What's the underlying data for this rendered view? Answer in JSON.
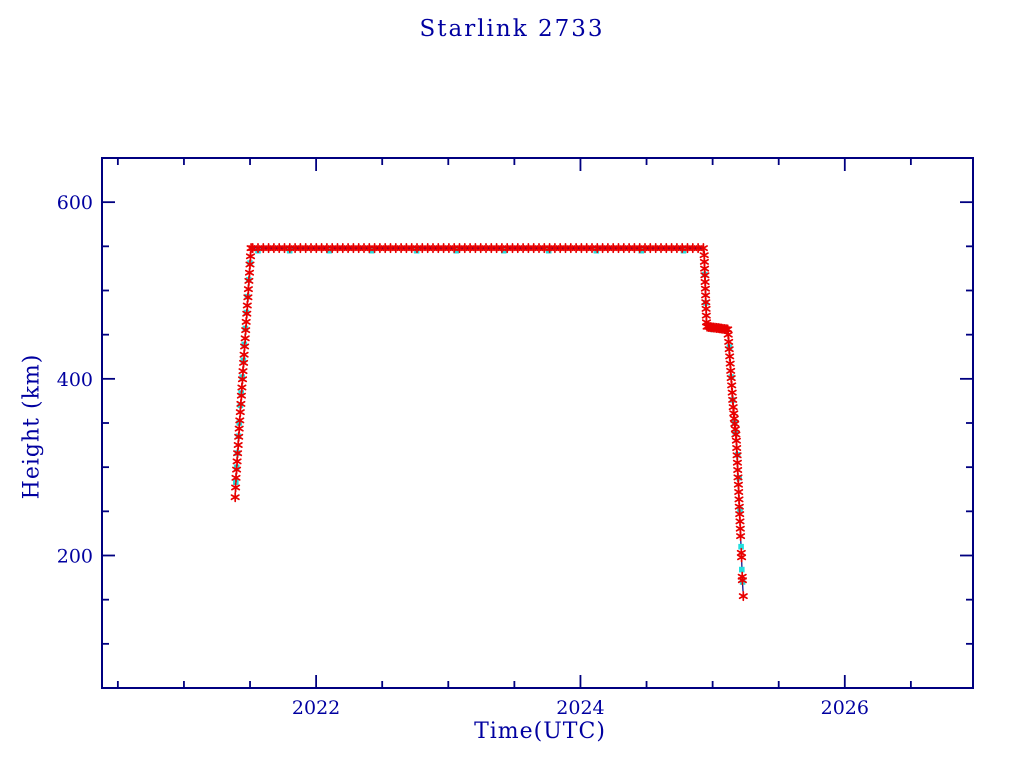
{
  "page": {
    "background": "#ffffff"
  },
  "header": {
    "title": "Starlink 2733"
  },
  "chart_data": {
    "type": "scatter",
    "title": "Starlink 2733",
    "xlabel": "Time(UTC)",
    "ylabel": "Height (km)",
    "x_range": [
      2020.38,
      2026.97
    ],
    "y_range": [
      50,
      650
    ],
    "grid": false,
    "legend": "none",
    "x_major_ticks": [
      {
        "v": 2022,
        "label": "2022"
      },
      {
        "v": 2024,
        "label": "2024"
      },
      {
        "v": 2026,
        "label": "2026"
      }
    ],
    "x_minor_ticks": [
      2020.5,
      2021,
      2021.5,
      2022.5,
      2023,
      2023.5,
      2024.5,
      2025,
      2025.5,
      2026.5
    ],
    "y_major_ticks": [
      {
        "v": 200,
        "label": "200"
      },
      {
        "v": 400,
        "label": "400"
      },
      {
        "v": 600,
        "label": "600"
      }
    ],
    "y_minor_ticks": [
      100,
      150,
      250,
      300,
      350,
      450,
      500,
      550
    ],
    "colors": {
      "axis": "#000080",
      "text": "#0000a0",
      "primary": "#e80000",
      "secondary": "#22dede",
      "line": "#000080"
    },
    "description": "Orbital height history of Starlink 2733: launch mid-2021 at ~270 km, orbit raising to ~548 km by late 2021, station-keeping at ~548 km until end of 2024, maneuver down to ~458 km in early 2025, then rapid orbital decay to ~150 km (reentry) around 2025.25.",
    "series": [
      {
        "name": "height-observed",
        "marker": "asterisk",
        "color_key": "primary",
        "connect_line": true,
        "segments": [
          {
            "t0": 2021.388,
            "h0": 266,
            "t1": 2021.391,
            "h1": 277,
            "n": 2
          },
          {
            "t0": 2021.394,
            "h0": 288,
            "t1": 2021.508,
            "h1": 548,
            "n": 29
          },
          {
            "t0": 2021.52,
            "h0": 548,
            "t1": 2024.93,
            "h1": 548,
            "n": 86
          },
          {
            "t0": 2024.936,
            "h0": 540,
            "t1": 2024.954,
            "h1": 464,
            "n": 11
          },
          {
            "t0": 2024.958,
            "h0": 459,
            "t1": 2025.114,
            "h1": 456,
            "n": 14
          },
          {
            "t0": 2025.118,
            "h0": 450,
            "t1": 2025.156,
            "h1": 368,
            "n": 11
          },
          {
            "t0": 2025.16,
            "h0": 361,
            "t1": 2025.176,
            "h1": 337,
            "n": 5
          },
          {
            "t0": 2025.18,
            "h0": 330,
            "t1": 2025.212,
            "h1": 222,
            "n": 14
          },
          {
            "t0": 2025.217,
            "h0": 203,
            "t1": 2025.219,
            "h1": 198,
            "n": 2
          },
          {
            "t0": 2025.2235,
            "h0": 176,
            "t1": 2025.2255,
            "h1": 172,
            "n": 2
          },
          {
            "t0": 2025.232,
            "h0": 154,
            "t1": 2025.232,
            "h1": 154,
            "n": 1
          }
        ],
        "key_points": [
          [
            2021.39,
            266
          ],
          [
            2021.51,
            548
          ],
          [
            2024.93,
            548
          ],
          [
            2024.95,
            462
          ],
          [
            2024.96,
            458
          ],
          [
            2025.11,
            456
          ],
          [
            2025.16,
            365
          ],
          [
            2025.18,
            335
          ],
          [
            2025.21,
            230
          ],
          [
            2025.232,
            154
          ]
        ]
      },
      {
        "name": "height-secondary",
        "marker": "square",
        "color_key": "secondary",
        "connect_line": false,
        "points": [
          [
            2021.392,
            283
          ],
          [
            2021.399,
            300
          ],
          [
            2021.405,
            316
          ],
          [
            2021.413,
            335
          ],
          [
            2021.419,
            350
          ],
          [
            2021.427,
            370
          ],
          [
            2021.433,
            384
          ],
          [
            2021.441,
            402
          ],
          [
            2021.449,
            421
          ],
          [
            2021.457,
            439
          ],
          [
            2021.465,
            457
          ],
          [
            2021.473,
            475
          ],
          [
            2021.481,
            493
          ],
          [
            2021.49,
            512
          ],
          [
            2021.5,
            531
          ],
          [
            2021.56,
            545
          ],
          [
            2021.8,
            545
          ],
          [
            2022.1,
            545
          ],
          [
            2022.42,
            545
          ],
          [
            2022.76,
            545
          ],
          [
            2023.06,
            545
          ],
          [
            2023.42,
            545
          ],
          [
            2023.76,
            545
          ],
          [
            2024.12,
            545
          ],
          [
            2024.46,
            545
          ],
          [
            2024.78,
            545
          ],
          [
            2024.94,
            518
          ],
          [
            2024.948,
            486
          ],
          [
            2025.0,
            456
          ],
          [
            2025.06,
            456
          ],
          [
            2025.128,
            436
          ],
          [
            2025.142,
            402
          ],
          [
            2025.152,
            376
          ],
          [
            2025.166,
            350
          ],
          [
            2025.173,
            339
          ],
          [
            2025.19,
            314
          ],
          [
            2025.2,
            288
          ],
          [
            2025.207,
            252
          ],
          [
            2025.2155,
            210
          ],
          [
            2025.221,
            184
          ],
          [
            2025.227,
            170
          ]
        ]
      }
    ]
  }
}
